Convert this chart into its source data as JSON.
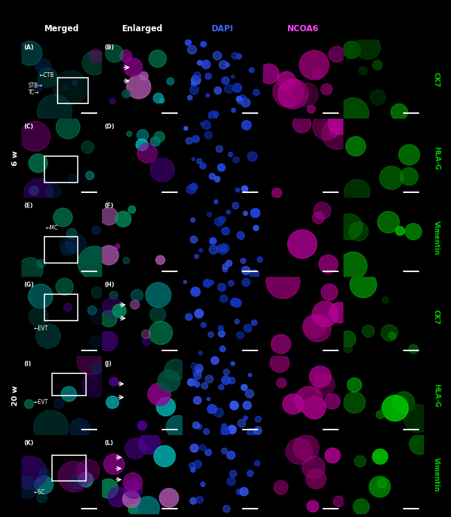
{
  "col_headers": [
    "Merged",
    "Enlarged",
    "DAPI",
    "NCOA6",
    ""
  ],
  "col_header_colors": [
    "white",
    "white",
    "#4466ff",
    "#ff44ff",
    "white"
  ],
  "right_labels": [
    "CK7",
    "HLA-G",
    "Vimentin",
    "CK7",
    "HLA-G",
    "Vimentin"
  ],
  "right_label_color": "#00cc00",
  "left_labels": [
    "6 w",
    "20 w"
  ],
  "left_label_color": "#ffffff",
  "panel_letters": [
    "A",
    "B",
    "C",
    "D",
    "E",
    "F",
    "G",
    "H",
    "I",
    "J",
    "K",
    "L"
  ],
  "n_rows": 6,
  "n_cols": 5,
  "figure_width": 6.5,
  "figure_height": 7.45,
  "background": "#000000",
  "annotations": {
    "0": [
      [
        "STB→",
        8,
        42
      ],
      [
        "←CTB",
        22,
        55
      ],
      [
        "TC→",
        8,
        33
      ]
    ],
    "2": [
      [
        "←MC",
        30,
        62
      ]
    ],
    "3": [
      [
        "←EVT",
        15,
        35
      ]
    ],
    "4": [
      [
        "←EVT",
        15,
        42
      ]
    ],
    "5": [
      [
        "←SC",
        15,
        28
      ]
    ]
  },
  "box_positions": {
    "0": [
      45,
      20,
      38,
      32
    ],
    "1": [
      28,
      20,
      42,
      33
    ],
    "2": [
      28,
      18,
      42,
      33
    ],
    "3": [
      28,
      45,
      42,
      33
    ],
    "4": [
      38,
      50,
      42,
      28
    ],
    "5": [
      38,
      42,
      42,
      33
    ]
  },
  "merged_bg": "#050810",
  "dapi_bg": "#000008",
  "ncoa6_bg": "#050005",
  "marker_bg": "#000500",
  "merged_colors": [
    "#004440",
    "#008860",
    "#00aaaa",
    "#880088",
    "#440088",
    "#006666"
  ],
  "enlarged_colors": [
    "#005540",
    "#009960",
    "#00bbbb",
    "#990099",
    "#550099",
    "#007777",
    "#aa55aa"
  ],
  "dapi_colors": [
    "#1133bb",
    "#2244dd",
    "#3355ee"
  ],
  "ncoa6_colors": [
    "#880066",
    "#aa0088",
    "#cc00aa",
    "#990077",
    "#bb0099"
  ],
  "marker_colors": [
    "#006600",
    "#008800",
    "#00aa00",
    "#00cc00",
    "#004400"
  ]
}
